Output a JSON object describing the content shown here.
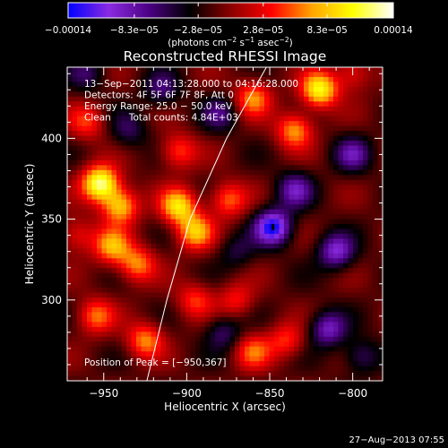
{
  "chart_data": {
    "type": "heatmap",
    "title": "Reconstructed RHESSI Image",
    "xlabel": "Heliocentric X (arcsec)",
    "ylabel": "Heliocentric Y (arcsec)",
    "xlim": [
      -972,
      -782
    ],
    "ylim": [
      250,
      444
    ],
    "x_ticks": [
      -950,
      -900,
      -850,
      -800
    ],
    "y_ticks": [
      300,
      350,
      400
    ],
    "x_tick_labels": [
      "−950",
      "−900",
      "−850",
      "−800"
    ],
    "y_tick_labels": [
      "300",
      "350",
      "400"
    ],
    "colorbar": {
      "min": -0.00014,
      "max": 0.00014,
      "ticks": [
        -0.00014,
        -8.3e-05,
        -2.8e-05,
        2.8e-05,
        8.3e-05,
        0.00014
      ],
      "tick_labels": [
        "−0.00014",
        "−8.3e−05",
        "−2.8e−05",
        "2.8e−05",
        "8.3e−05",
        "0.00014"
      ],
      "units_parts": [
        "(photons cm",
        "−2",
        " s",
        "−1",
        " asec",
        "−2",
        ")"
      ],
      "colors": [
        "#0000ff",
        "#8a2be2",
        "#4b0082",
        "#000000",
        "#8b0000",
        "#ff0000",
        "#ffa500",
        "#ffff00",
        "#ffffff"
      ]
    },
    "annotations": [
      "13−Sep−2011 04:13:28.000 to 04:16:28.000",
      "Detectors: 4F 5F 6F 7F 8F, Att 0",
      "Energy Range: 25.0 − 50.0 keV",
      "Clean      Total counts: 4.84E+03"
    ],
    "peak_label": "Position of Peak = [−950,367]",
    "limb_curve": [
      [
        -924,
        250
      ],
      [
        -912,
        300
      ],
      [
        -898,
        350
      ],
      [
        -876,
        400
      ],
      [
        -852,
        444
      ]
    ],
    "peak": [
      -950,
      367
    ],
    "blobs": [
      {
        "x": -952,
        "y": 372,
        "v": 1.0
      },
      {
        "x": -940,
        "y": 358,
        "v": 0.7
      },
      {
        "x": -905,
        "y": 358,
        "v": 0.75
      },
      {
        "x": -895,
        "y": 342,
        "v": 0.65
      },
      {
        "x": -930,
        "y": 322,
        "v": 0.55
      },
      {
        "x": -945,
        "y": 333,
        "v": 0.6
      },
      {
        "x": -820,
        "y": 430,
        "v": 0.85
      },
      {
        "x": -835,
        "y": 405,
        "v": 0.6
      },
      {
        "x": -860,
        "y": 425,
        "v": 0.55
      },
      {
        "x": -905,
        "y": 392,
        "v": 0.45
      },
      {
        "x": -875,
        "y": 362,
        "v": 0.5
      },
      {
        "x": -960,
        "y": 410,
        "v": 0.4
      },
      {
        "x": -955,
        "y": 290,
        "v": 0.5
      },
      {
        "x": -925,
        "y": 275,
        "v": 0.55
      },
      {
        "x": -895,
        "y": 300,
        "v": 0.4
      },
      {
        "x": -870,
        "y": 300,
        "v": 0.35
      },
      {
        "x": -860,
        "y": 268,
        "v": 0.45
      },
      {
        "x": -840,
        "y": 275,
        "v": 0.4
      },
      {
        "x": -800,
        "y": 440,
        "v": 0.35
      },
      {
        "x": -966,
        "y": 340,
        "v": 0.35
      },
      {
        "x": -848,
        "y": 345,
        "v": -0.85
      },
      {
        "x": -810,
        "y": 330,
        "v": -0.6
      },
      {
        "x": -815,
        "y": 282,
        "v": -0.55
      },
      {
        "x": -800,
        "y": 390,
        "v": -0.45
      },
      {
        "x": -835,
        "y": 368,
        "v": -0.5
      },
      {
        "x": -880,
        "y": 415,
        "v": -0.35
      },
      {
        "x": -915,
        "y": 430,
        "v": -0.35
      },
      {
        "x": -935,
        "y": 405,
        "v": -0.3
      },
      {
        "x": -878,
        "y": 280,
        "v": -0.35
      },
      {
        "x": -795,
        "y": 265,
        "v": -0.35
      },
      {
        "x": -960,
        "y": 440,
        "v": -0.3
      },
      {
        "x": -870,
        "y": 330,
        "v": -0.25
      }
    ]
  },
  "footer": {
    "timestamp": "27−Aug−2013 07:55"
  }
}
